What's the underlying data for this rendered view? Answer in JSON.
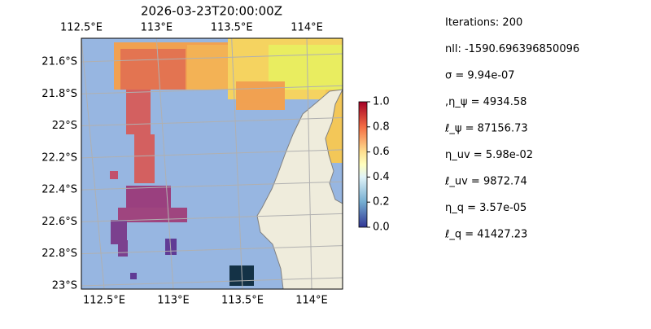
{
  "map": {
    "title": "2026-03-23T20:00:00Z",
    "lon_ticks": [
      {
        "value": 112.5,
        "label": "112.5°E"
      },
      {
        "value": 113,
        "label": "113°E"
      },
      {
        "value": 113.5,
        "label": "113.5°E"
      },
      {
        "value": 114,
        "label": "114°E"
      }
    ],
    "lat_ticks": [
      {
        "value": -21.6,
        "label": "21.6°S"
      },
      {
        "value": -21.8,
        "label": "21.8°S"
      },
      {
        "value": -22,
        "label": "22°S"
      },
      {
        "value": -22.2,
        "label": "22.2°S"
      },
      {
        "value": -22.4,
        "label": "22.4°S"
      },
      {
        "value": -22.6,
        "label": "22.6°S"
      },
      {
        "value": -22.8,
        "label": "22.8°S"
      },
      {
        "value": -23,
        "label": "23°S"
      }
    ],
    "colorbar": {
      "lim": [
        0,
        1
      ],
      "ticks": [
        {
          "value": 0,
          "label": "0.0"
        },
        {
          "value": 0.2,
          "label": "0.2"
        },
        {
          "value": 0.4,
          "label": "0.4"
        },
        {
          "value": 0.6,
          "label": "0.6"
        },
        {
          "value": 0.8,
          "label": "0.8"
        },
        {
          "value": 1,
          "label": "1.0"
        }
      ]
    }
  },
  "stats": [
    "Iterations: 200",
    "nll: -1590.696396850096",
    "σ = 9.94e-07",
    ",η_ψ = 4934.58",
    "ℓ_ψ = 87156.73",
    "η_uv = 5.98e-02",
    "ℓ_uv = 9872.74",
    "η_q = 3.57e-05",
    "ℓ_q = 41427.23"
  ]
}
